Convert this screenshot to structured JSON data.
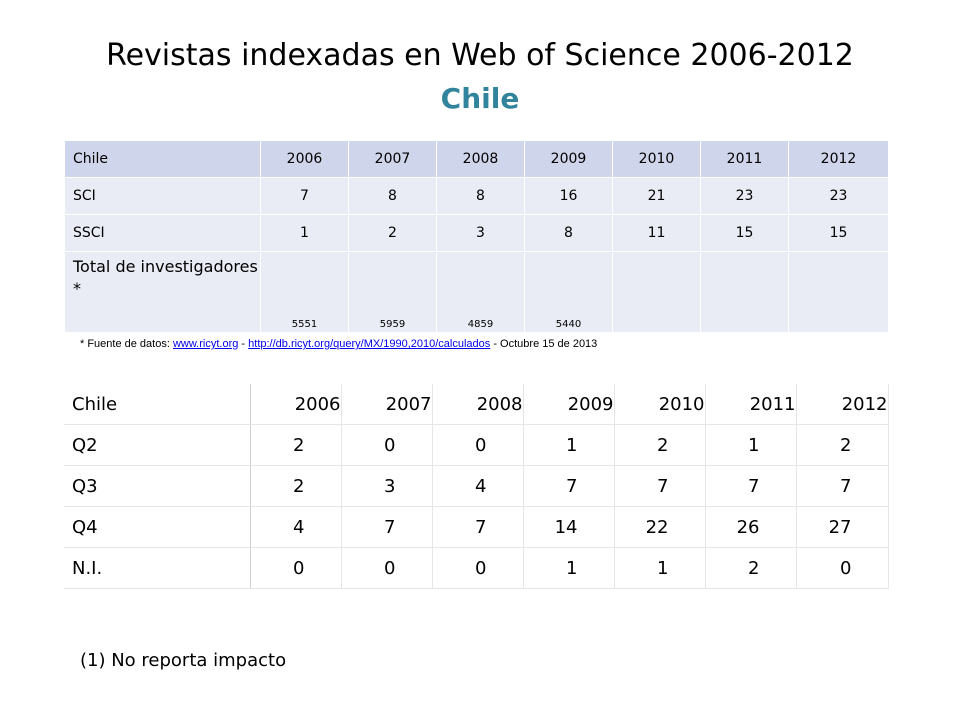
{
  "title": "Revistas indexadas en Web of Science 2006-2012",
  "subtitle": "Chile",
  "table1": {
    "header": [
      "Chile",
      "2006",
      "2007",
      "2008",
      "2009",
      "2010",
      "2011",
      "2012"
    ],
    "rows": [
      {
        "label": "SCI",
        "values": [
          "7",
          "8",
          "8",
          "16",
          "21",
          "23",
          "23"
        ]
      },
      {
        "label": "SSCI",
        "values": [
          "1",
          "2",
          "3",
          "8",
          "11",
          "15",
          "15"
        ]
      },
      {
        "label": "Total de investigadores *",
        "values": [
          "5551",
          "5959",
          "4859",
          "5440",
          "",
          "",
          ""
        ]
      }
    ]
  },
  "footnote": {
    "prefix": "* Fuente de datos: ",
    "link1": "www.ricyt.org",
    "sep": " - ",
    "link2": "http://db.ricyt.org/query/MX/1990,2010/calculados",
    "suffix": " - Octubre 15 de 2013"
  },
  "table2": {
    "header": [
      "Chile",
      "2006",
      "2007",
      "2008",
      "2009",
      "2010",
      "2011",
      "2012"
    ],
    "rows": [
      {
        "label": "Q2",
        "values": [
          "2",
          "0",
          "0",
          "1",
          "2",
          "1",
          "2"
        ]
      },
      {
        "label": "Q3",
        "values": [
          "2",
          "3",
          "4",
          "7",
          "7",
          "7",
          "7"
        ]
      },
      {
        "label": "Q4",
        "values": [
          "4",
          "7",
          "7",
          "14",
          "22",
          "26",
          "27"
        ]
      },
      {
        "label": "N.I.",
        "values": [
          "0",
          "0",
          "0",
          "1",
          "1",
          "2",
          "0"
        ]
      }
    ]
  },
  "note": "(1) No reporta impacto"
}
